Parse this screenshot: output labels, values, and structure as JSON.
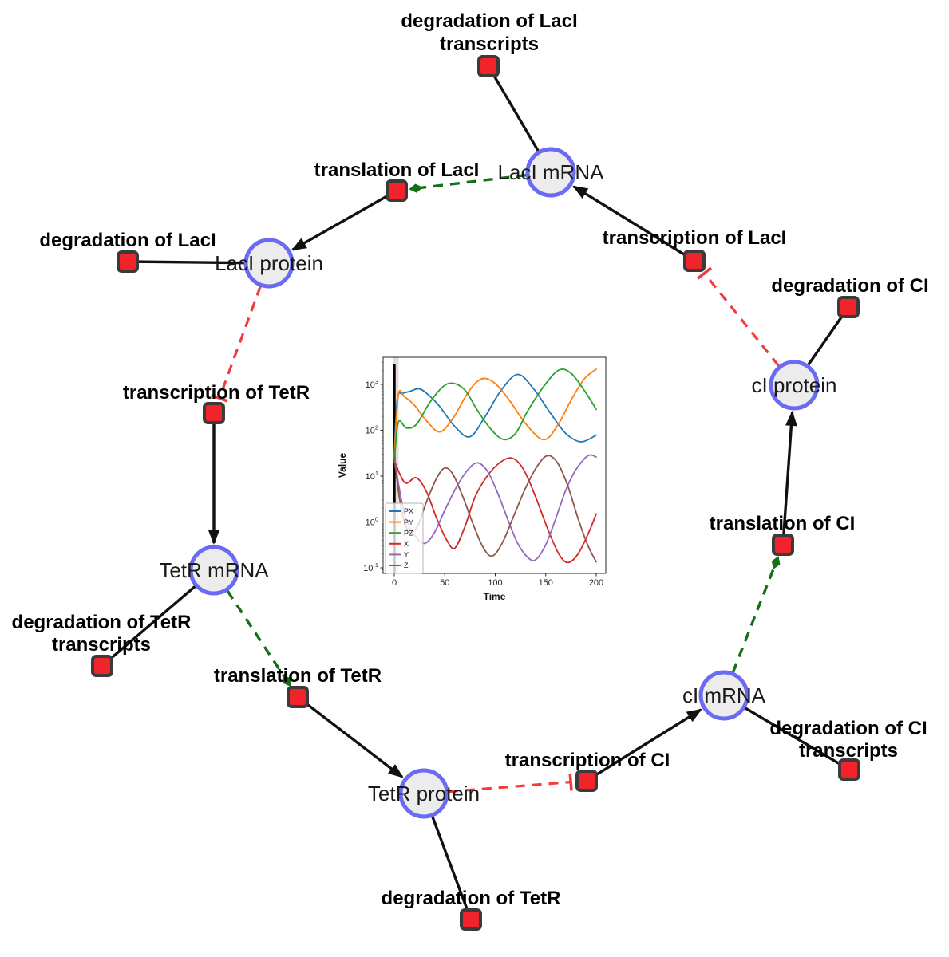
{
  "network": {
    "species": [
      {
        "label": "LacI mRNA"
      },
      {
        "label": "LacI protein"
      },
      {
        "label": "TetR mRNA"
      },
      {
        "label": "TetR protein"
      },
      {
        "label": "cI mRNA"
      },
      {
        "label": "cI protein"
      }
    ],
    "reactions": [
      {
        "lines": [
          "degradation of LacI",
          "transcripts"
        ]
      },
      {
        "lines": [
          "translation of LacI"
        ]
      },
      {
        "lines": [
          "transcription of LacI"
        ]
      },
      {
        "lines": [
          "degradation of LacI"
        ]
      },
      {
        "lines": [
          "transcription of TetR"
        ]
      },
      {
        "lines": [
          "degradation of TetR",
          "transcripts"
        ]
      },
      {
        "lines": [
          "translation of TetR"
        ]
      },
      {
        "lines": [
          "degradation of TetR"
        ]
      },
      {
        "lines": [
          "transcription of CI"
        ]
      },
      {
        "lines": [
          "degradation of CI",
          "transcripts"
        ]
      },
      {
        "lines": [
          "translation of CI"
        ]
      },
      {
        "lines": [
          "degradation of CI"
        ]
      }
    ],
    "edge_semantics": {
      "black_solid": "reaction flow (consumption / production arrow)",
      "green_dashed": "modifier (mRNA activates translation)",
      "red_dashed_tee": "inhibition (protein represses transcription)"
    },
    "colors": {
      "species_fill": "#ececec",
      "species_stroke": "#6a6af2",
      "reaction_fill": "#f3232b",
      "reaction_stroke": "#3b3b3b",
      "edge": "#111111",
      "modifier": "#157015",
      "inhibition": "#f23b3b"
    }
  },
  "chart_data": {
    "type": "line",
    "title": "",
    "xlabel": "Time",
    "ylabel": "Value",
    "x_ticks": [
      0,
      50,
      100,
      150,
      200
    ],
    "y_scale": "log",
    "y_tick_exponents": [
      -1,
      0,
      1,
      2,
      3
    ],
    "xlim": [
      -11,
      211
    ],
    "ylim_log": [
      -1.12,
      3.59
    ],
    "grid": false,
    "legend_position": "lower left",
    "initial_marker": {
      "type": "vline",
      "x": 0
    },
    "series": [
      {
        "name": "PX",
        "color": "#1f77b4",
        "points": [
          [
            0,
            30
          ],
          [
            3,
            480
          ],
          [
            8,
            630
          ],
          [
            15,
            700
          ],
          [
            25,
            800
          ],
          [
            35,
            560
          ],
          [
            45,
            330
          ],
          [
            60,
            120
          ],
          [
            75,
            72
          ],
          [
            90,
            200
          ],
          [
            105,
            700
          ],
          [
            122,
            1650
          ],
          [
            138,
            800
          ],
          [
            155,
            230
          ],
          [
            170,
            85
          ],
          [
            185,
            56
          ],
          [
            200,
            78
          ]
        ]
      },
      {
        "name": "PY",
        "color": "#ff7f0e",
        "points": [
          [
            0,
            25
          ],
          [
            4,
            590
          ],
          [
            10,
            540
          ],
          [
            20,
            350
          ],
          [
            32,
            160
          ],
          [
            45,
            92
          ],
          [
            58,
            180
          ],
          [
            70,
            520
          ],
          [
            80,
            1050
          ],
          [
            90,
            1350
          ],
          [
            102,
            950
          ],
          [
            115,
            420
          ],
          [
            130,
            140
          ],
          [
            148,
            62
          ],
          [
            162,
            130
          ],
          [
            175,
            450
          ],
          [
            188,
            1300
          ],
          [
            200,
            2150
          ]
        ]
      },
      {
        "name": "PZ",
        "color": "#2ca02c",
        "points": [
          [
            0,
            20
          ],
          [
            4,
            148
          ],
          [
            12,
            112
          ],
          [
            22,
            135
          ],
          [
            35,
            400
          ],
          [
            48,
            880
          ],
          [
            58,
            1060
          ],
          [
            70,
            750
          ],
          [
            82,
            280
          ],
          [
            95,
            110
          ],
          [
            108,
            63
          ],
          [
            120,
            85
          ],
          [
            132,
            260
          ],
          [
            148,
            900
          ],
          [
            163,
            2050
          ],
          [
            175,
            1750
          ],
          [
            188,
            750
          ],
          [
            200,
            285
          ]
        ]
      },
      {
        "name": "X",
        "color": "#d62728",
        "points": [
          [
            0,
            22
          ],
          [
            6,
            10.5
          ],
          [
            12,
            7
          ],
          [
            22,
            9.2
          ],
          [
            32,
            4.5
          ],
          [
            42,
            1.2
          ],
          [
            52,
            0.4
          ],
          [
            60,
            0.27
          ],
          [
            70,
            0.8
          ],
          [
            80,
            3.5
          ],
          [
            92,
            10
          ],
          [
            105,
            20
          ],
          [
            117,
            24.5
          ],
          [
            128,
            14
          ],
          [
            140,
            3.5
          ],
          [
            152,
            0.7
          ],
          [
            163,
            0.2
          ],
          [
            172,
            0.13
          ],
          [
            182,
            0.2
          ],
          [
            192,
            0.55
          ],
          [
            200,
            1.5
          ]
        ]
      },
      {
        "name": "Y",
        "color": "#9467bd",
        "points": [
          [
            0,
            25
          ],
          [
            6,
            4
          ],
          [
            12,
            1.1
          ],
          [
            20,
            0.52
          ],
          [
            30,
            0.34
          ],
          [
            40,
            0.6
          ],
          [
            50,
            1.8
          ],
          [
            62,
            6
          ],
          [
            72,
            13
          ],
          [
            82,
            19.5
          ],
          [
            92,
            13
          ],
          [
            102,
            4.5
          ],
          [
            112,
            1.2
          ],
          [
            122,
            0.35
          ],
          [
            132,
            0.17
          ],
          [
            140,
            0.15
          ],
          [
            150,
            0.32
          ],
          [
            160,
            1.2
          ],
          [
            170,
            5
          ],
          [
            180,
            14
          ],
          [
            192,
            28
          ],
          [
            200,
            26
          ]
        ]
      },
      {
        "name": "Z",
        "color": "#8c564b",
        "points": [
          [
            0,
            25
          ],
          [
            5,
            3.5
          ],
          [
            10,
            1.0
          ],
          [
            16,
            0.58
          ],
          [
            24,
            0.9
          ],
          [
            32,
            2.8
          ],
          [
            42,
            9
          ],
          [
            50,
            15
          ],
          [
            58,
            11
          ],
          [
            68,
            3.5
          ],
          [
            78,
            0.9
          ],
          [
            88,
            0.28
          ],
          [
            97,
            0.18
          ],
          [
            107,
            0.35
          ],
          [
            118,
            1.3
          ],
          [
            130,
            5.5
          ],
          [
            142,
            17
          ],
          [
            152,
            28
          ],
          [
            162,
            19
          ],
          [
            172,
            6
          ],
          [
            182,
            1.2
          ],
          [
            192,
            0.3
          ],
          [
            200,
            0.135
          ]
        ]
      }
    ]
  }
}
